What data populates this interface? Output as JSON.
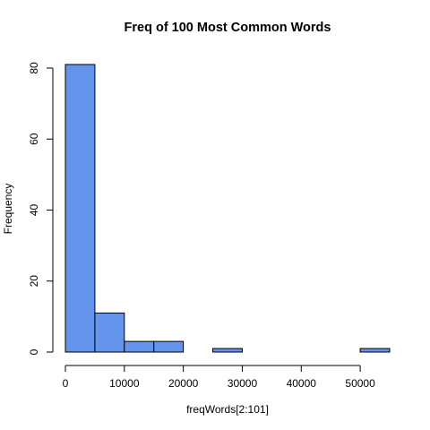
{
  "chart_data": {
    "type": "bar",
    "subtype": "histogram",
    "title": "Freq of 100 Most Common Words",
    "xlabel": "freqWords[2:101]",
    "ylabel": "Frequency",
    "bins": [
      {
        "start": 0,
        "end": 5000,
        "count": 81
      },
      {
        "start": 5000,
        "end": 10000,
        "count": 11
      },
      {
        "start": 10000,
        "end": 15000,
        "count": 3
      },
      {
        "start": 15000,
        "end": 20000,
        "count": 3
      },
      {
        "start": 20000,
        "end": 25000,
        "count": 0
      },
      {
        "start": 25000,
        "end": 30000,
        "count": 1
      },
      {
        "start": 30000,
        "end": 35000,
        "count": 0
      },
      {
        "start": 35000,
        "end": 40000,
        "count": 0
      },
      {
        "start": 40000,
        "end": 45000,
        "count": 0
      },
      {
        "start": 45000,
        "end": 50000,
        "count": 0
      },
      {
        "start": 50000,
        "end": 55000,
        "count": 1
      }
    ],
    "xlim": [
      0,
      55000
    ],
    "ylim": [
      0,
      81
    ],
    "xticks": [
      0,
      10000,
      20000,
      30000,
      40000,
      50000
    ],
    "xtick_labels": [
      "0",
      "10000",
      "20000",
      "30000",
      "40000",
      "50000"
    ],
    "yticks": [
      0,
      20,
      40,
      60,
      80
    ],
    "ytick_labels": [
      "0",
      "20",
      "40",
      "60",
      "80"
    ],
    "grid": false,
    "legend": "none",
    "bar_color": "#6495ED",
    "bar_edge_color": "#000000"
  }
}
